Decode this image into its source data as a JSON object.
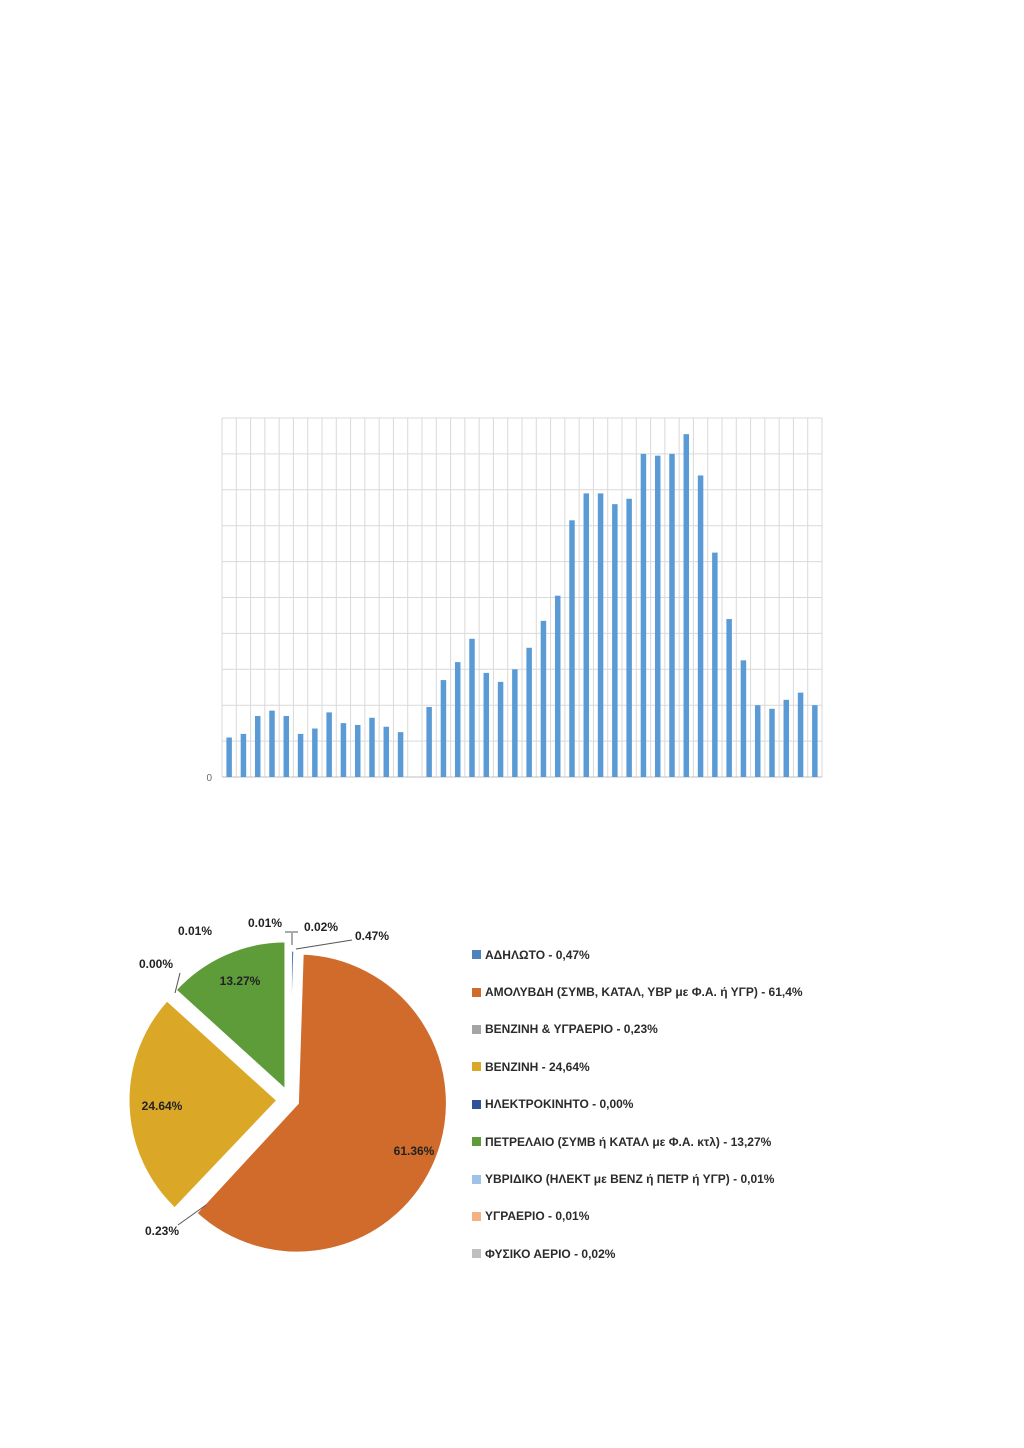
{
  "colors": {
    "bar": "#5b9bd5",
    "grid": "#d9d9d9",
    "axis": "#bfbfbf"
  },
  "chart_data": [
    {
      "type": "bar",
      "title": "",
      "xlabel": "",
      "ylabel": "",
      "y_ticks": [
        "0"
      ],
      "ylim": [
        0,
        10
      ],
      "grid": true,
      "legend": "none",
      "bars": [
        {
          "slot": 0,
          "value": 1.1
        },
        {
          "slot": 1,
          "value": 1.2
        },
        {
          "slot": 2,
          "value": 1.7
        },
        {
          "slot": 3,
          "value": 1.85
        },
        {
          "slot": 4,
          "value": 1.7
        },
        {
          "slot": 5,
          "value": 1.2
        },
        {
          "slot": 6,
          "value": 1.35
        },
        {
          "slot": 7,
          "value": 1.8
        },
        {
          "slot": 8,
          "value": 1.5
        },
        {
          "slot": 9,
          "value": 1.45
        },
        {
          "slot": 10,
          "value": 1.65
        },
        {
          "slot": 11,
          "value": 1.4
        },
        {
          "slot": 12,
          "value": 1.25
        },
        {
          "slot": 14,
          "value": 1.95
        },
        {
          "slot": 15,
          "value": 2.7
        },
        {
          "slot": 16,
          "value": 3.2
        },
        {
          "slot": 17,
          "value": 3.85
        },
        {
          "slot": 18,
          "value": 2.9
        },
        {
          "slot": 19,
          "value": 2.65
        },
        {
          "slot": 20,
          "value": 3.0
        },
        {
          "slot": 21,
          "value": 3.6
        },
        {
          "slot": 22,
          "value": 4.35
        },
        {
          "slot": 23,
          "value": 5.05
        },
        {
          "slot": 24,
          "value": 7.15
        },
        {
          "slot": 25,
          "value": 7.9
        },
        {
          "slot": 26,
          "value": 7.9
        },
        {
          "slot": 27,
          "value": 7.6
        },
        {
          "slot": 28,
          "value": 7.75
        },
        {
          "slot": 29,
          "value": 9.0
        },
        {
          "slot": 30,
          "value": 8.95
        },
        {
          "slot": 31,
          "value": 9.0
        },
        {
          "slot": 32,
          "value": 9.55
        },
        {
          "slot": 33,
          "value": 8.4
        },
        {
          "slot": 34,
          "value": 6.25
        },
        {
          "slot": 35,
          "value": 4.4
        },
        {
          "slot": 36,
          "value": 3.25
        },
        {
          "slot": 37,
          "value": 2.0
        },
        {
          "slot": 38,
          "value": 1.9
        },
        {
          "slot": 39,
          "value": 2.15
        },
        {
          "slot": 40,
          "value": 2.35
        },
        {
          "slot": 41,
          "value": 2.0
        }
      ]
    },
    {
      "type": "pie",
      "legend": "right",
      "slices": [
        {
          "name": "ΑΔΗΛΩΤΟ - 0,47%",
          "value": 0.47,
          "label": "0.47%",
          "color": "#4f81bd"
        },
        {
          "name": "ΑΜΟΛΥΒΔΗ (ΣΥΜΒ, ΚΑΤΑΛ, ΥΒΡ με Φ.Α. ή ΥΓΡ) - 61,4%",
          "value": 61.36,
          "label": "61.36%",
          "color": "#d06b2c"
        },
        {
          "name": "ΒΕΝΖΙΝΗ & ΥΓΡΑΕΡΙΟ - 0,23%",
          "value": 0.23,
          "label": "0.23%",
          "color": "#a5a5a5"
        },
        {
          "name": "ΒΕΝΖΙΝΗ - 24,64%",
          "value": 24.64,
          "label": "24.64%",
          "color": "#daa727"
        },
        {
          "name": "ΗΛΕΚΤΡΟΚΙΝΗΤΟ - 0,00%",
          "value": 0.0,
          "label": "0.00%",
          "color": "#2f5597"
        },
        {
          "name": "ΠΕΤΡΕΛΑΙΟ (ΣΥΜΒ ή ΚΑΤΑΛ με Φ.Α. κτλ) - 13,27%",
          "value": 13.27,
          "label": "13.27%",
          "color": "#5e9c3a"
        },
        {
          "name": "ΥΒΡΙΔΙΚΟ (ΗΛΕΚΤ με ΒΕΝΖ ή ΠΕΤΡ ή ΥΓΡ) - 0,01%",
          "value": 0.01,
          "label": "0.01%",
          "color": "#9dc3e6"
        },
        {
          "name": "ΥΓΡΑΕΡΙΟ - 0,01%",
          "value": 0.01,
          "label": "0.01%",
          "color": "#f4b183"
        },
        {
          "name": "ΦΥΣΙΚΟ ΑΕΡΙΟ - 0,02%",
          "value": 0.02,
          "label": "0.02%",
          "color": "#bfbfbf"
        }
      ]
    }
  ]
}
